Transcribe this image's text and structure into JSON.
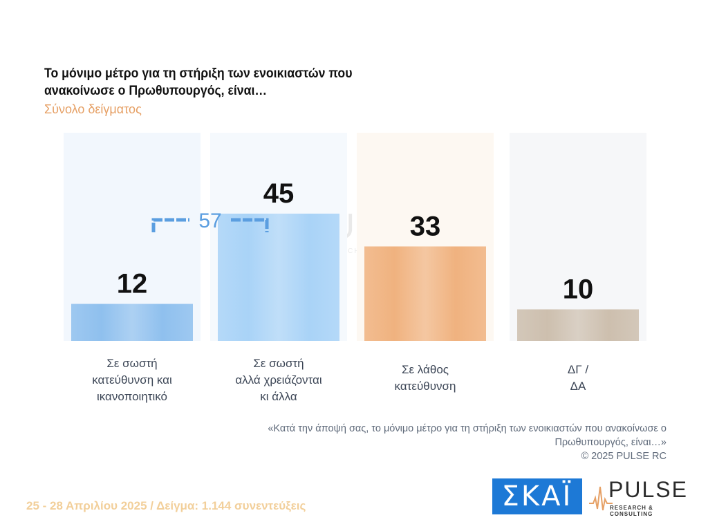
{
  "header": {
    "title": "Το μόνιμο μέτρο για τη στήριξη των ενοικιαστών που ανακοίνωσε ο Πρωθυπουργός, είναι…",
    "subtitle": "Σύνολο δείγματος"
  },
  "chart_data": {
    "type": "bar",
    "categories": [
      [
        "Σε σωστή",
        "κατεύθυνση και",
        "ικανοποιητικό"
      ],
      [
        "Σε σωστή",
        "αλλά χρειάζονται",
        "κι άλλα"
      ],
      [
        "Σε λάθος",
        "κατεύθυνση"
      ],
      [
        "ΔΓ /",
        "ΔΑ"
      ]
    ],
    "values": [
      12,
      45,
      33,
      10
    ],
    "data_labels": [
      "12",
      "45",
      "33",
      "10"
    ],
    "colors": [
      "#8fc0ee",
      "#a9d3f7",
      "#f0b27f",
      "#cdbfae"
    ],
    "column_bg_colors": [
      "#f2f7fd",
      "#f5f9fd",
      "#fdf8f2",
      "#f6f7f9"
    ],
    "bracket": {
      "label": "57",
      "spans": [
        0,
        1
      ],
      "color": "#5b9ee0"
    },
    "ylim": [
      0,
      100
    ]
  },
  "source": {
    "question": "«Κατά την άποψή σας, το μόνιμο μέτρο για τη στήριξη των ενοικιαστών που ανακοίνωσε ο Πρωθυπουργός, είναι…»",
    "copyright": "©  2025  PULSE RC"
  },
  "footer": {
    "text": "25 - 28 Απριλίου 2025  /  Δείγμα:  1.144 συνεντεύξεις"
  },
  "logos": {
    "skai": "ΣΚΑΪ",
    "pulse": "PULSE",
    "pulse_sub": "RESEARCH & CONSULTING"
  }
}
